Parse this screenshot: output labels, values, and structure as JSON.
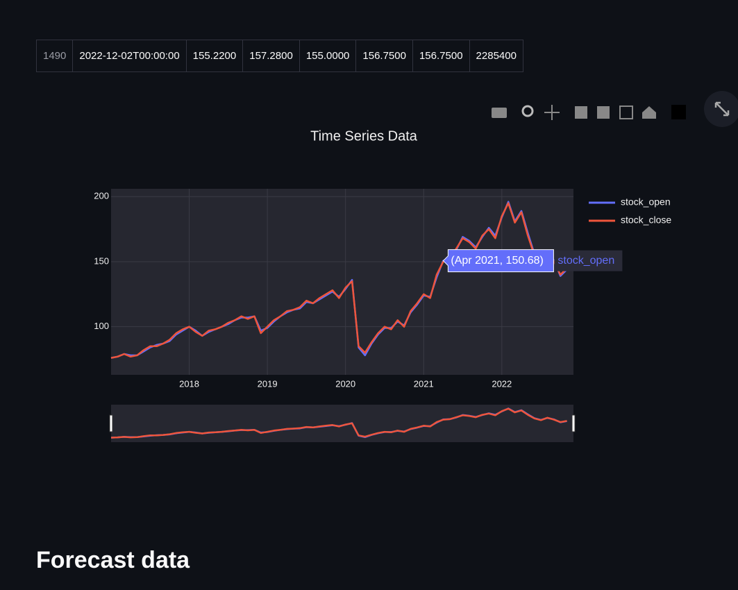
{
  "table": {
    "rows": [
      [
        "1490",
        "2022-12-02T00:00:00",
        "155.2200",
        "157.2800",
        "155.0000",
        "156.7500",
        "156.7500",
        "2285400"
      ]
    ]
  },
  "chart_data": {
    "type": "line",
    "title": "Time Series Data",
    "x": [
      "2017-01",
      "2017-02",
      "2017-03",
      "2017-04",
      "2017-05",
      "2017-06",
      "2017-07",
      "2017-08",
      "2017-09",
      "2017-10",
      "2017-11",
      "2017-12",
      "2018-01",
      "2018-02",
      "2018-03",
      "2018-04",
      "2018-05",
      "2018-06",
      "2018-07",
      "2018-08",
      "2018-09",
      "2018-10",
      "2018-11",
      "2018-12",
      "2019-01",
      "2019-02",
      "2019-03",
      "2019-04",
      "2019-05",
      "2019-06",
      "2019-07",
      "2019-08",
      "2019-09",
      "2019-10",
      "2019-11",
      "2019-12",
      "2020-01",
      "2020-02",
      "2020-03",
      "2020-04",
      "2020-05",
      "2020-06",
      "2020-07",
      "2020-08",
      "2020-09",
      "2020-10",
      "2020-11",
      "2020-12",
      "2021-01",
      "2021-02",
      "2021-03",
      "2021-04",
      "2021-05",
      "2021-06",
      "2021-07",
      "2021-08",
      "2021-09",
      "2021-10",
      "2021-11",
      "2021-12",
      "2022-01",
      "2022-02",
      "2022-03",
      "2022-04",
      "2022-05",
      "2022-06",
      "2022-07",
      "2022-08",
      "2022-09",
      "2022-10",
      "2022-11"
    ],
    "series": [
      {
        "name": "stock_open",
        "color": "#636efa",
        "values": [
          76,
          77,
          79,
          78,
          78,
          81,
          84,
          86,
          87,
          89,
          94,
          97,
          100,
          97,
          93,
          96,
          98,
          100,
          102,
          105,
          107,
          107,
          108,
          97,
          99,
          104,
          108,
          111,
          113,
          114,
          119,
          118,
          121,
          124,
          127,
          123,
          129,
          136,
          84,
          78,
          87,
          94,
          99,
          99,
          104,
          101,
          111,
          117,
          124,
          123,
          138,
          150.68,
          152,
          159,
          169,
          166,
          161,
          169,
          176,
          170,
          184,
          196,
          181,
          189,
          172,
          156,
          149,
          157,
          151,
          139,
          144
        ]
      },
      {
        "name": "stock_close",
        "color": "#ef553b",
        "values": [
          76,
          77,
          79,
          77,
          78,
          82,
          85,
          85,
          87,
          90,
          95,
          98,
          100,
          96,
          93,
          97,
          98,
          100,
          103,
          105,
          108,
          106,
          108,
          95,
          100,
          105,
          108,
          112,
          113,
          115,
          120,
          118,
          122,
          125,
          128,
          122,
          130,
          135,
          85,
          80,
          88,
          95,
          100,
          98,
          105,
          100,
          112,
          118,
          125,
          122,
          140,
          150,
          152,
          160,
          168,
          165,
          160,
          170,
          175,
          168,
          185,
          195,
          180,
          188,
          170,
          155,
          148,
          158,
          150,
          140,
          145
        ]
      }
    ],
    "xlim": [
      "2017-01",
      "2022-12"
    ],
    "xticks": [
      "2018",
      "2019",
      "2020",
      "2021",
      "2022"
    ],
    "ylim": [
      63,
      206
    ],
    "yticks": [
      100,
      150,
      200
    ],
    "grid": true,
    "hover": {
      "label": "(Apr 2021, 150.68)",
      "series": "stock_open"
    }
  },
  "heading": "Forecast data"
}
